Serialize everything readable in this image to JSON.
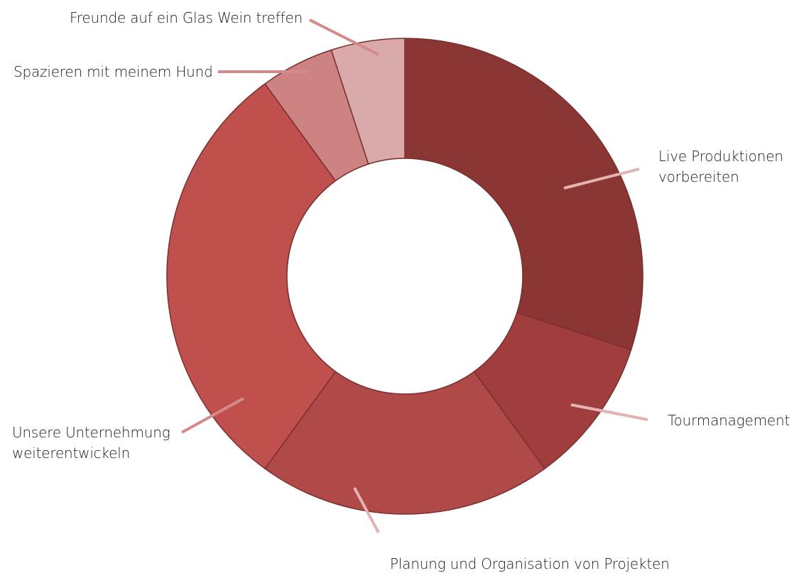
{
  "chart_data": {
    "type": "pie",
    "series": [
      {
        "label": "Live Produktionen\nvorbereiten",
        "value": 30,
        "color": "#8a3635"
      },
      {
        "label": "Tourmanagement",
        "value": 10,
        "color": "#a03e3d"
      },
      {
        "label": "Planung und Organisation von Projekten",
        "value": 20,
        "color": "#b04a48"
      },
      {
        "label": "Unsere Unternehmung\nweiterentwickeln",
        "value": 30,
        "color": "#c0504e"
      },
      {
        "label": "Spazieren mit meinem Hund",
        "value": 5,
        "color": "#cd8381"
      },
      {
        "label": "Freunde auf ein Glas Wein treffen",
        "value": 5,
        "color": "#daaaaa"
      }
    ],
    "leader_colors": [
      "#e3b2b2",
      "#e3b2b2",
      "#e3b2b2",
      "#d58a8a",
      "#d58a8a",
      "#d58a8a"
    ]
  }
}
